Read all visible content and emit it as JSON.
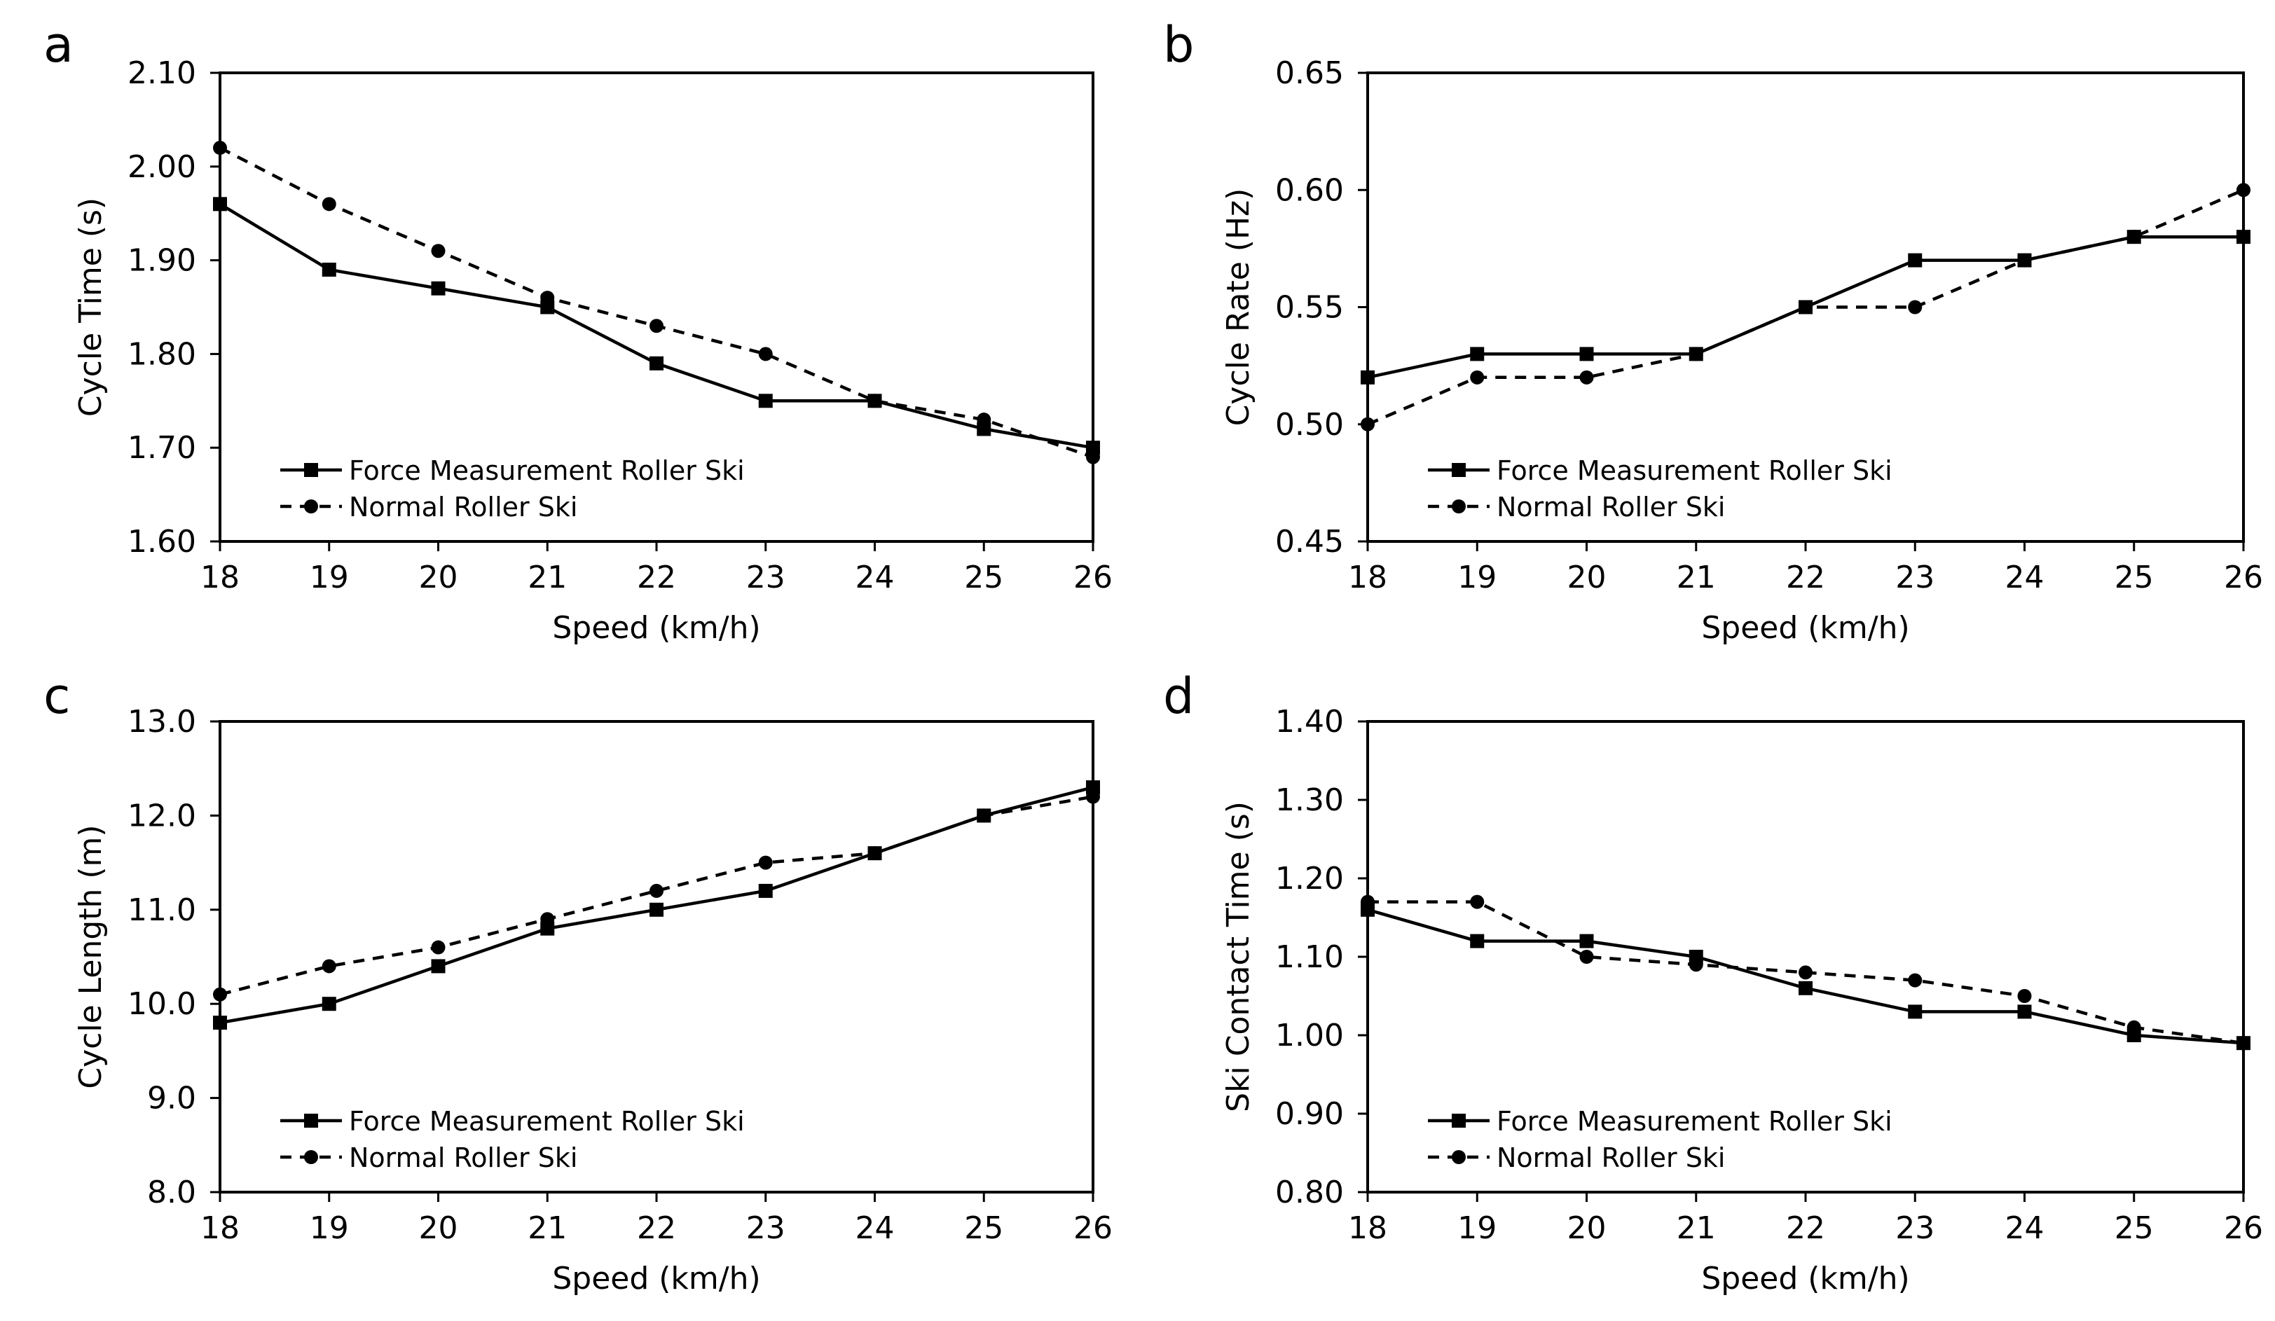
{
  "chart_data": [
    {
      "type": "line",
      "panel": "a",
      "xlabel": "Speed (km/h)",
      "ylabel": "Cycle Time (s)",
      "x": [
        18,
        19,
        20,
        21,
        22,
        23,
        24,
        25,
        26
      ],
      "xticks": [
        "18",
        "19",
        "20",
        "21",
        "22",
        "23",
        "24",
        "25",
        "26"
      ],
      "ylim": [
        1.6,
        2.1
      ],
      "yticks": [
        "1.60",
        "1.70",
        "1.80",
        "1.90",
        "2.00",
        "2.10"
      ],
      "legend_position": "bottom-left",
      "series": [
        {
          "name": "Force Measurement Roller Ski",
          "style": "solid",
          "marker": "square",
          "values": [
            1.96,
            1.89,
            1.87,
            1.85,
            1.79,
            1.75,
            1.75,
            1.72,
            1.7
          ]
        },
        {
          "name": "Normal Roller Ski",
          "style": "dashed",
          "marker": "circle",
          "values": [
            2.02,
            1.96,
            1.91,
            1.86,
            1.83,
            1.8,
            1.75,
            1.73,
            1.69
          ]
        }
      ]
    },
    {
      "type": "line",
      "panel": "b",
      "xlabel": "Speed (km/h)",
      "ylabel": "Cycle Rate (Hz)",
      "x": [
        18,
        19,
        20,
        21,
        22,
        23,
        24,
        25,
        26
      ],
      "xticks": [
        "18",
        "19",
        "20",
        "21",
        "22",
        "23",
        "24",
        "25",
        "26"
      ],
      "ylim": [
        0.45,
        0.65
      ],
      "yticks": [
        "0.45",
        "0.50",
        "0.55",
        "0.60",
        "0.65"
      ],
      "legend_position": "bottom-left",
      "series": [
        {
          "name": "Force Measurement Roller Ski",
          "style": "solid",
          "marker": "square",
          "values": [
            0.52,
            0.53,
            0.53,
            0.53,
            0.55,
            0.57,
            0.57,
            0.58,
            0.58
          ]
        },
        {
          "name": "Normal Roller Ski",
          "style": "dashed",
          "marker": "circle",
          "values": [
            0.5,
            0.52,
            0.52,
            0.53,
            0.55,
            0.55,
            0.57,
            0.58,
            0.6
          ]
        }
      ]
    },
    {
      "type": "line",
      "panel": "c",
      "xlabel": "Speed (km/h)",
      "ylabel": "Cycle Length (m)",
      "x": [
        18,
        19,
        20,
        21,
        22,
        23,
        24,
        25,
        26
      ],
      "xticks": [
        "18",
        "19",
        "20",
        "21",
        "22",
        "23",
        "24",
        "25",
        "26"
      ],
      "ylim": [
        8.0,
        13.0
      ],
      "yticks": [
        "8.0",
        "9.0",
        "10.0",
        "11.0",
        "12.0",
        "13.0"
      ],
      "legend_position": "bottom-left",
      "series": [
        {
          "name": "Force Measurement Roller Ski",
          "style": "solid",
          "marker": "square",
          "values": [
            9.8,
            10.0,
            10.4,
            10.8,
            11.0,
            11.2,
            11.6,
            12.0,
            12.3
          ]
        },
        {
          "name": "Normal Roller Ski",
          "style": "dashed",
          "marker": "circle",
          "values": [
            10.1,
            10.4,
            10.6,
            10.9,
            11.2,
            11.5,
            11.6,
            12.0,
            12.2
          ]
        }
      ]
    },
    {
      "type": "line",
      "panel": "d",
      "xlabel": "Speed (km/h)",
      "ylabel": "Ski Contact Time (s)",
      "x": [
        18,
        19,
        20,
        21,
        22,
        23,
        24,
        25,
        26
      ],
      "xticks": [
        "18",
        "19",
        "20",
        "21",
        "22",
        "23",
        "24",
        "25",
        "26"
      ],
      "ylim": [
        0.8,
        1.4
      ],
      "yticks": [
        "0.80",
        "0.90",
        "1.00",
        "1.10",
        "1.20",
        "1.30",
        "1.40"
      ],
      "legend_position": "bottom-left",
      "series": [
        {
          "name": "Force Measurement Roller Ski",
          "style": "solid",
          "marker": "square",
          "values": [
            1.16,
            1.12,
            1.12,
            1.1,
            1.06,
            1.03,
            1.03,
            1.0,
            0.99
          ]
        },
        {
          "name": "Normal Roller Ski",
          "style": "dashed",
          "marker": "circle",
          "values": [
            1.17,
            1.17,
            1.1,
            1.09,
            1.08,
            1.07,
            1.05,
            1.01,
            0.99
          ]
        }
      ]
    }
  ]
}
